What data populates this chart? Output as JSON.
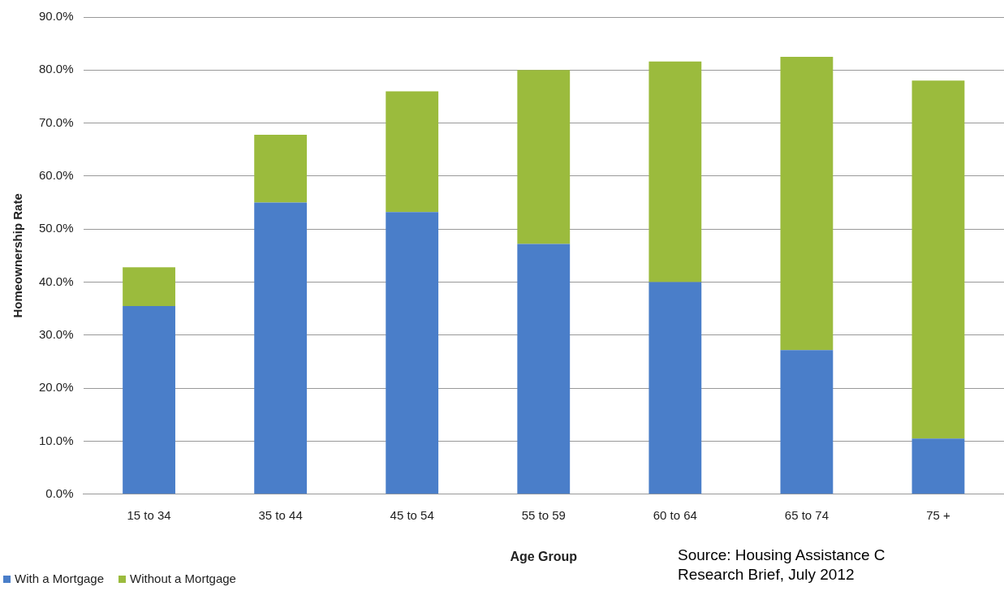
{
  "chart_data": {
    "type": "bar",
    "stacked": true,
    "xlabel": "Age Group",
    "ylabel": "Homeownership Rate",
    "categories": [
      "15 to 34",
      "35 to 44",
      "45 to 54",
      "55 to 59",
      "60 to 64",
      "65 to 74",
      "75 +"
    ],
    "series": [
      {
        "name": "With a Mortgage",
        "color": "#4a7ec9",
        "values": [
          35.5,
          55,
          53.2,
          47.2,
          40,
          27.2,
          10.5
        ]
      },
      {
        "name": "Without a Mortgage",
        "color": "#9bbb3d",
        "values": [
          7.3,
          12.8,
          22.8,
          32.8,
          41.6,
          55.3,
          67.5
        ]
      }
    ],
    "ylim": [
      0,
      90
    ],
    "yticks": [
      {
        "value": 0,
        "label": "0.0%"
      },
      {
        "value": 10,
        "label": "10.0%"
      },
      {
        "value": 20,
        "label": "20.0%"
      },
      {
        "value": 30,
        "label": "30.0%"
      },
      {
        "value": 40,
        "label": "40.0%"
      },
      {
        "value": 50,
        "label": "50.0%"
      },
      {
        "value": 60,
        "label": "60.0%"
      },
      {
        "value": 70,
        "label": "70.0%"
      },
      {
        "value": 80,
        "label": "80.0%"
      },
      {
        "value": 90,
        "label": "90.0%"
      }
    ],
    "grid": "y",
    "legend": "bottom left",
    "annotations": [
      "Source: Housing Assistance C",
      "Research Brief, July 2012"
    ]
  }
}
